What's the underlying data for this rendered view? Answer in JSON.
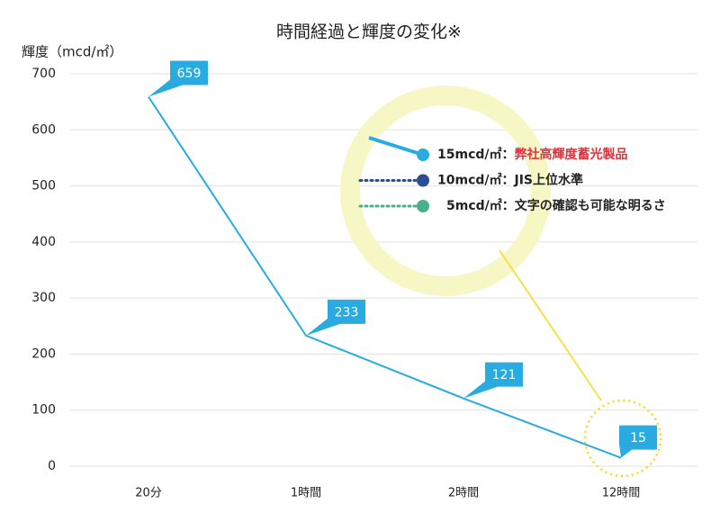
{
  "chart_data": {
    "type": "line",
    "title": "時間経過と輝度の変化※",
    "y_label": "輝度（mcd/㎡）",
    "categories": [
      "20分",
      "1時間",
      "2時間",
      "12時間"
    ],
    "values": [
      659,
      233,
      121,
      15
    ],
    "color": "#29abe2",
    "ylim": [
      0,
      700
    ],
    "yticks": [
      0,
      100,
      200,
      300,
      400,
      500,
      600,
      700
    ],
    "grid": true,
    "legend": [
      {
        "label": "15mcd/㎡：",
        "note": "弊社高輝度蓄光製品",
        "color": "#29abe2",
        "note_color": "#e0323c"
      },
      {
        "label": "10mcd/㎡：JIS上位水準",
        "color": "#2e4f8f"
      },
      {
        "label": "5mcd/㎡：文字の確認も可能な明るさ",
        "color": "#4caf8c"
      }
    ]
  }
}
